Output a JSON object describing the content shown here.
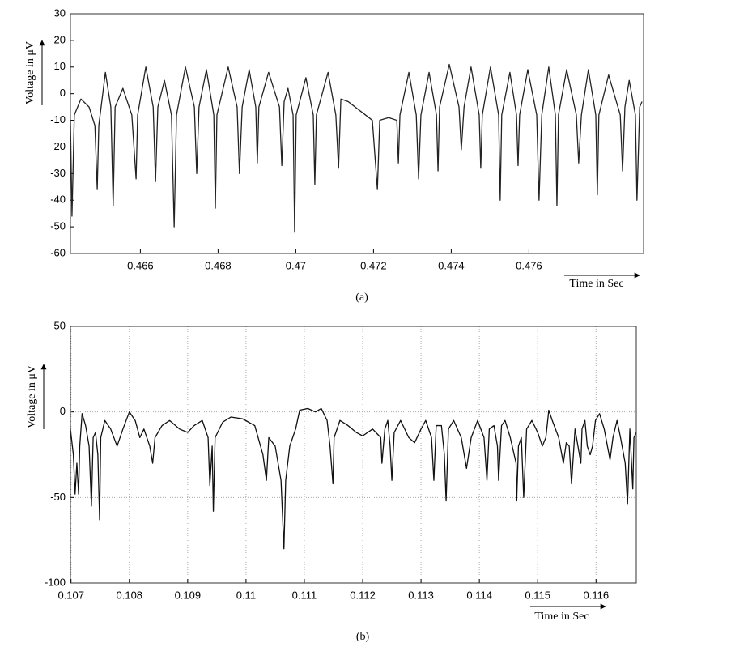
{
  "chart_data": [
    {
      "type": "line",
      "caption": "(a)",
      "x_label": "Time in Sec",
      "y_label": "Voltage in μV",
      "color": "#222222",
      "grid": false,
      "xlim": [
        0.4642,
        0.47895
      ],
      "ylim": [
        -60,
        30
      ],
      "xticks": [
        0.466,
        0.468,
        0.47,
        0.472,
        0.474,
        0.476
      ],
      "yticks": [
        -60,
        -50,
        -40,
        -30,
        -20,
        -10,
        0,
        10,
        20,
        30
      ],
      "x": [
        0.4642,
        0.46424,
        0.4643,
        0.46447,
        0.46468,
        0.46483,
        0.46489,
        0.46493,
        0.4651,
        0.46524,
        0.4653,
        0.46535,
        0.46555,
        0.46578,
        0.46589,
        0.46593,
        0.46614,
        0.46633,
        0.46639,
        0.46645,
        0.46662,
        0.4668,
        0.46687,
        0.46693,
        0.46716,
        0.46739,
        0.46745,
        0.46751,
        0.4677,
        0.46789,
        0.46793,
        0.46797,
        0.46826,
        0.46849,
        0.46855,
        0.46862,
        0.4688,
        0.46897,
        0.46901,
        0.46905,
        0.4693,
        0.46958,
        0.46964,
        0.4697,
        0.4698,
        0.46993,
        0.46997,
        0.47001,
        0.47026,
        0.47045,
        0.47049,
        0.47053,
        0.47083,
        0.47103,
        0.4711,
        0.47116,
        0.47135,
        0.47197,
        0.4721,
        0.47216,
        0.47239,
        0.4726,
        0.47264,
        0.47268,
        0.47291,
        0.4731,
        0.47316,
        0.47322,
        0.47343,
        0.47362,
        0.47366,
        0.4737,
        0.47395,
        0.4742,
        0.47426,
        0.47433,
        0.47451,
        0.47472,
        0.47476,
        0.4748,
        0.47501,
        0.47522,
        0.47526,
        0.4753,
        0.47551,
        0.47568,
        0.47572,
        0.47576,
        0.47597,
        0.4762,
        0.47626,
        0.47633,
        0.47651,
        0.47668,
        0.47672,
        0.47676,
        0.47697,
        0.47722,
        0.47728,
        0.47735,
        0.47753,
        0.47772,
        0.47776,
        0.4778,
        0.47805,
        0.47835,
        0.47841,
        0.47847,
        0.47858,
        0.47874,
        0.47878,
        0.47885,
        0.47891
      ],
      "values": [
        -10,
        -46,
        -8,
        -2,
        -5,
        -12,
        -36,
        -12,
        8,
        -5,
        -42,
        -5,
        2,
        -8,
        -32,
        -8,
        10,
        -5,
        -33,
        -5,
        5,
        -8,
        -50,
        -8,
        10,
        -5,
        -30,
        -5,
        9,
        -8,
        -43,
        -8,
        10,
        -5,
        -30,
        -5,
        9,
        -5,
        -26,
        -5,
        8,
        -5,
        -27,
        -3,
        2,
        -8,
        -52,
        -8,
        6,
        -8,
        -34,
        -8,
        8,
        -8,
        -28,
        -2,
        -3,
        -10,
        -36,
        -10,
        -9,
        -10,
        -26,
        -8,
        8,
        -8,
        -32,
        -8,
        8,
        -8,
        -29,
        -5,
        11,
        -5,
        -21,
        -5,
        10,
        -8,
        -28,
        -8,
        10,
        -8,
        -40,
        -8,
        8,
        -8,
        -27,
        -8,
        9,
        -8,
        -40,
        -8,
        10,
        -8,
        -42,
        -8,
        9,
        -8,
        -26,
        -8,
        9,
        -8,
        -38,
        -8,
        7,
        -8,
        -29,
        -5,
        5,
        -8,
        -40,
        -5,
        -3
      ]
    },
    {
      "type": "line",
      "caption": "(b)",
      "x_label": "Time in Sec",
      "y_label": "Voltage in μV",
      "color": "#111111",
      "grid": true,
      "xlim": [
        0.10699,
        0.11669
      ],
      "ylim": [
        -100,
        50
      ],
      "xticks": [
        0.107,
        0.108,
        0.109,
        0.11,
        0.111,
        0.112,
        0.113,
        0.114,
        0.115,
        0.116
      ],
      "yticks": [
        -100,
        -50,
        0,
        50
      ],
      "x": [
        0.10699,
        0.10704,
        0.10707,
        0.1071,
        0.10713,
        0.10715,
        0.10719,
        0.10725,
        0.10731,
        0.10735,
        0.10738,
        0.10742,
        0.10746,
        0.10749,
        0.10751,
        0.10758,
        0.10768,
        0.10779,
        0.10789,
        0.108,
        0.1081,
        0.10818,
        0.10825,
        0.10835,
        0.1084,
        0.10844,
        0.10856,
        0.10869,
        0.10886,
        0.109,
        0.10911,
        0.10925,
        0.10935,
        0.10938,
        0.10942,
        0.10944,
        0.10947,
        0.1096,
        0.10974,
        0.10994,
        0.11015,
        0.11029,
        0.11035,
        0.11039,
        0.1105,
        0.1106,
        0.11065,
        0.11068,
        0.11075,
        0.11085,
        0.11092,
        0.11106,
        0.11119,
        0.11129,
        0.11139,
        0.11144,
        0.11149,
        0.11151,
        0.11161,
        0.11175,
        0.11189,
        0.112,
        0.11217,
        0.11231,
        0.11233,
        0.11238,
        0.11243,
        0.11247,
        0.1125,
        0.11254,
        0.11265,
        0.11279,
        0.11289,
        0.113,
        0.11308,
        0.11318,
        0.11322,
        0.11326,
        0.11335,
        0.1134,
        0.11343,
        0.11347,
        0.11356,
        0.11369,
        0.11378,
        0.11386,
        0.11397,
        0.11408,
        0.11413,
        0.11417,
        0.11425,
        0.11431,
        0.11433,
        0.11438,
        0.11444,
        0.11453,
        0.11463,
        0.11464,
        0.11467,
        0.11472,
        0.11476,
        0.11481,
        0.1149,
        0.115,
        0.11508,
        0.11514,
        0.11519,
        0.11525,
        0.11536,
        0.11544,
        0.11549,
        0.11554,
        0.11558,
        0.11564,
        0.11569,
        0.11574,
        0.11576,
        0.11581,
        0.11585,
        0.1159,
        0.11594,
        0.11599,
        0.11606,
        0.11614,
        0.11624,
        0.11629,
        0.11636,
        0.11642,
        0.1165,
        0.11654,
        0.11658,
        0.11663,
        0.11665,
        0.11669
      ],
      "values": [
        -10,
        -25,
        -48,
        -30,
        -48,
        -20,
        -1,
        -8,
        -20,
        -55,
        -15,
        -12,
        -25,
        -63,
        -15,
        -5,
        -10,
        -20,
        -10,
        0,
        -5,
        -15,
        -10,
        -20,
        -30,
        -15,
        -8,
        -5,
        -10,
        -12,
        -8,
        -5,
        -15,
        -43,
        -20,
        -58,
        -15,
        -6,
        -3,
        -4,
        -8,
        -25,
        -40,
        -15,
        -20,
        -40,
        -80,
        -40,
        -20,
        -10,
        1,
        2,
        0,
        2,
        -5,
        -20,
        -42,
        -15,
        -5,
        -8,
        -12,
        -14,
        -10,
        -15,
        -30,
        -10,
        -5,
        -20,
        -40,
        -12,
        -5,
        -15,
        -18,
        -10,
        -5,
        -15,
        -40,
        -8,
        -8,
        -25,
        -52,
        -10,
        -5,
        -15,
        -33,
        -15,
        -5,
        -15,
        -40,
        -10,
        -8,
        -20,
        -40,
        -8,
        -5,
        -15,
        -30,
        -52,
        -20,
        -15,
        -50,
        -10,
        -5,
        -12,
        -20,
        -15,
        1,
        -5,
        -15,
        -30,
        -18,
        -20,
        -42,
        -10,
        -20,
        -30,
        -10,
        -5,
        -20,
        -25,
        -20,
        -5,
        -1,
        -10,
        -28,
        -15,
        -5,
        -15,
        -30,
        -54,
        -10,
        -45,
        -15,
        -12
      ]
    }
  ]
}
